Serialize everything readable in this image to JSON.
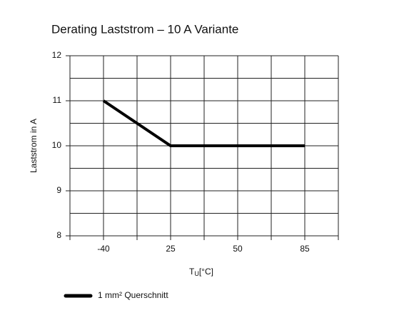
{
  "chart_data": {
    "type": "line",
    "title": "Derating Laststrom – 10 A Variante",
    "y_label": "Laststrom in A",
    "x_label": {
      "symbol": "T",
      "subscript": "U",
      "unit": "[°C]"
    },
    "categories": [
      "-40",
      "25",
      "50",
      "85"
    ],
    "series": [
      {
        "name": "1 mm² Querschnitt",
        "color": "#000000",
        "values": [
          11,
          10,
          10,
          10
        ]
      }
    ],
    "ylim": [
      8,
      12
    ],
    "yticks": [
      8,
      9,
      10,
      11,
      12
    ],
    "y_minor_ticks": [
      8.5,
      9.5,
      10.5,
      11.5
    ],
    "grid": true
  }
}
